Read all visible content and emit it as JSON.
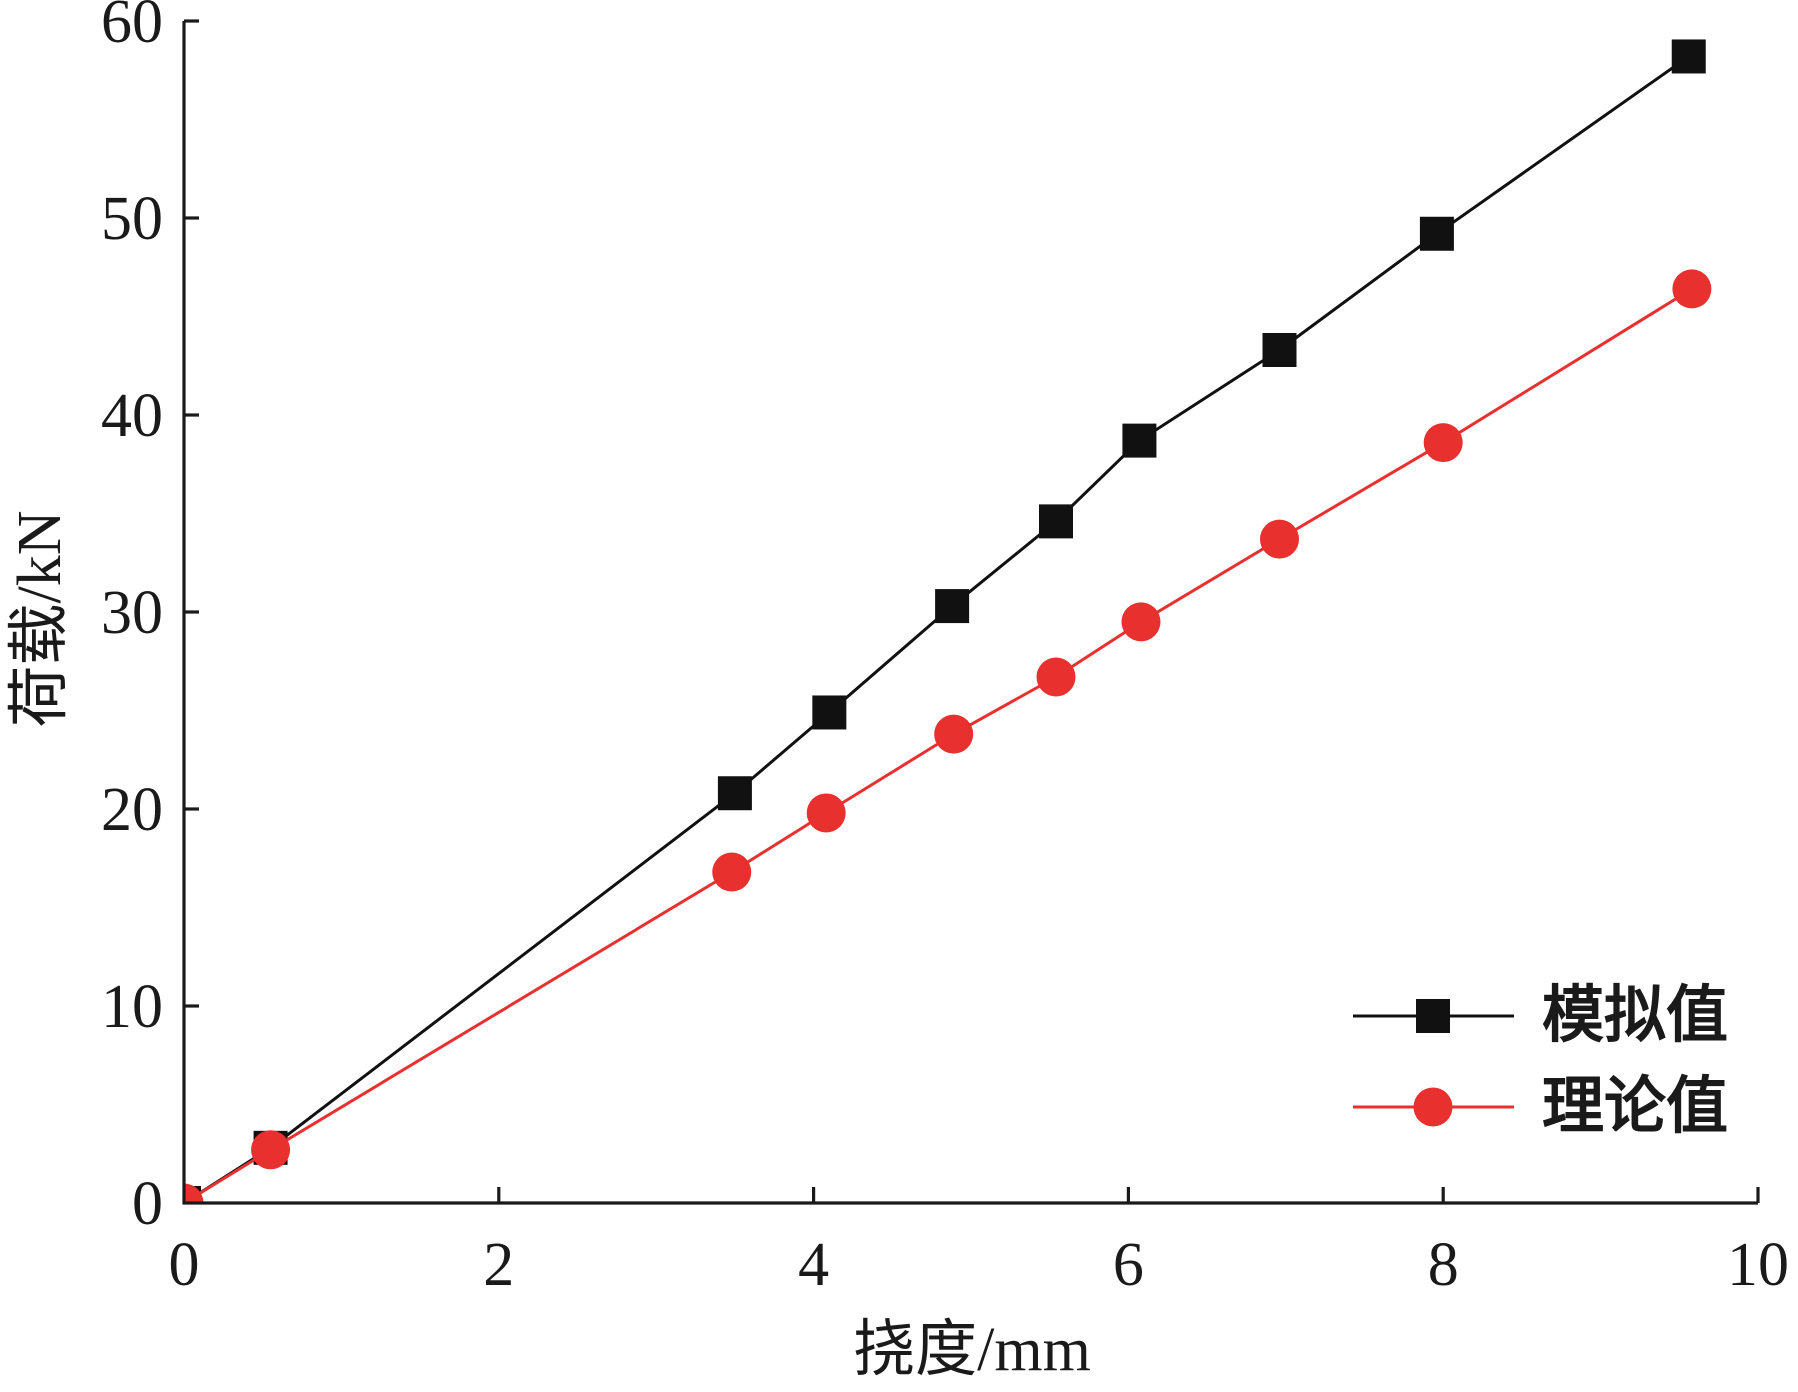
{
  "chart_data": {
    "type": "line",
    "xlabel": "挠度/mm",
    "ylabel": "荷载/kN",
    "xlim": [
      0,
      10
    ],
    "ylim": [
      0,
      60
    ],
    "xticks": [
      0,
      2,
      4,
      6,
      8,
      10
    ],
    "yticks": [
      0,
      10,
      20,
      30,
      40,
      50,
      60
    ],
    "grid": false,
    "legend": "bottom-right",
    "series": [
      {
        "name": "模拟值",
        "color": "#111111",
        "marker": "square",
        "x": [
          0,
          0.55,
          3.5,
          4.1,
          4.88,
          5.54,
          6.07,
          6.96,
          7.96,
          9.56
        ],
        "y": [
          0,
          2.8,
          20.8,
          24.9,
          30.3,
          34.6,
          38.7,
          43.3,
          49.2,
          58.2
        ]
      },
      {
        "name": "理论值",
        "color": "#e8312f",
        "marker": "circle",
        "x": [
          0,
          0.55,
          3.48,
          4.08,
          4.89,
          5.54,
          6.08,
          6.96,
          8.0,
          9.58
        ],
        "y": [
          0,
          2.7,
          16.8,
          19.8,
          23.8,
          26.7,
          29.5,
          33.7,
          38.6,
          46.4
        ]
      }
    ]
  }
}
